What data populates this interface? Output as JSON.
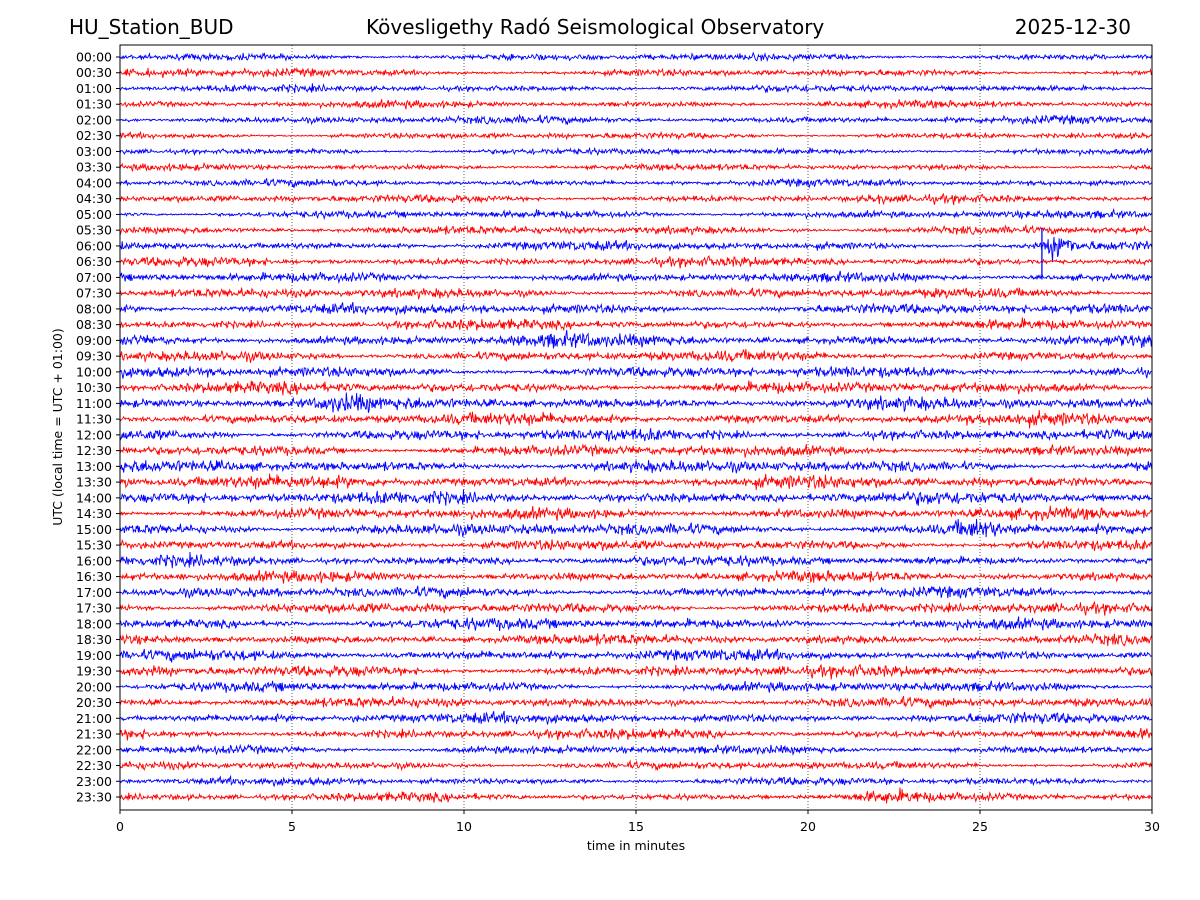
{
  "header": {
    "station": "HU_Station_BUD",
    "observatory": "Kövesligethy Radó Seismological Observatory",
    "date": "2025-12-30"
  },
  "chart_data": {
    "type": "line",
    "title": "Kövesligethy Radó Seismological Observatory",
    "xlabel": "time in minutes",
    "ylabel": "UTC (local time = UTC + 01:00)",
    "xlim": [
      0,
      30
    ],
    "xticks": [
      "0",
      "5",
      "10",
      "15",
      "20",
      "25",
      "30"
    ],
    "grid": "vertical dotted at 5-minute steps",
    "colors": [
      "#0000ff",
      "#ff0000"
    ],
    "rows": [
      "00:00",
      "00:30",
      "01:00",
      "01:30",
      "02:00",
      "02:30",
      "03:00",
      "03:30",
      "04:00",
      "04:30",
      "05:00",
      "05:30",
      "06:00",
      "06:30",
      "07:00",
      "07:30",
      "08:00",
      "08:30",
      "09:00",
      "09:30",
      "10:00",
      "10:30",
      "11:00",
      "11:30",
      "12:00",
      "12:30",
      "13:00",
      "13:30",
      "14:00",
      "14:30",
      "15:00",
      "15:30",
      "16:00",
      "16:30",
      "17:00",
      "17:30",
      "18:00",
      "18:30",
      "19:00",
      "19:30",
      "20:00",
      "20:30",
      "21:00",
      "21:30",
      "22:00",
      "22:30",
      "23:00",
      "23:30"
    ],
    "noise_level": [
      0.5,
      0.5,
      0.5,
      0.5,
      0.55,
      0.45,
      0.45,
      0.45,
      0.5,
      0.55,
      0.55,
      0.6,
      0.65,
      0.65,
      0.65,
      0.7,
      0.75,
      0.7,
      0.8,
      0.75,
      0.8,
      0.8,
      0.85,
      0.85,
      0.85,
      0.8,
      0.85,
      0.9,
      0.9,
      0.8,
      0.85,
      0.75,
      0.75,
      0.75,
      0.75,
      0.75,
      0.8,
      0.75,
      0.8,
      0.8,
      0.7,
      0.7,
      0.75,
      0.7,
      0.6,
      0.55,
      0.55,
      0.6
    ],
    "events": [
      {
        "row": "00:30",
        "start_min": 2.5,
        "end_min": 6.5,
        "amplitude": 1.8
      },
      {
        "row": "02:00",
        "start_min": 0.0,
        "end_min": 0.6,
        "amplitude": 1.8
      },
      {
        "row": "04:30",
        "start_min": 21.5,
        "end_min": 22.5,
        "amplitude": 1.6
      },
      {
        "row": "06:00",
        "start_min": 26.8,
        "end_min": 27.8,
        "amplitude": 4.0
      },
      {
        "row": "09:00",
        "start_min": 10.5,
        "end_min": 14.0,
        "amplitude": 1.6
      },
      {
        "row": "11:00",
        "start_min": 5.5,
        "end_min": 7.5,
        "amplitude": 1.6
      },
      {
        "row": "13:30",
        "start_min": 0.0,
        "end_min": 0.5,
        "amplitude": 2.0
      },
      {
        "row": "15:00",
        "start_min": 24.0,
        "end_min": 25.8,
        "amplitude": 2.0
      },
      {
        "row": "21:00",
        "start_min": 6.5,
        "end_min": 7.2,
        "amplitude": 1.6
      },
      {
        "row": "23:30",
        "start_min": 21.0,
        "end_min": 23.6,
        "amplitude": 1.6
      }
    ],
    "spike": {
      "start_row": "05:30",
      "end_row": "07:00",
      "minute": 26.8
    }
  }
}
